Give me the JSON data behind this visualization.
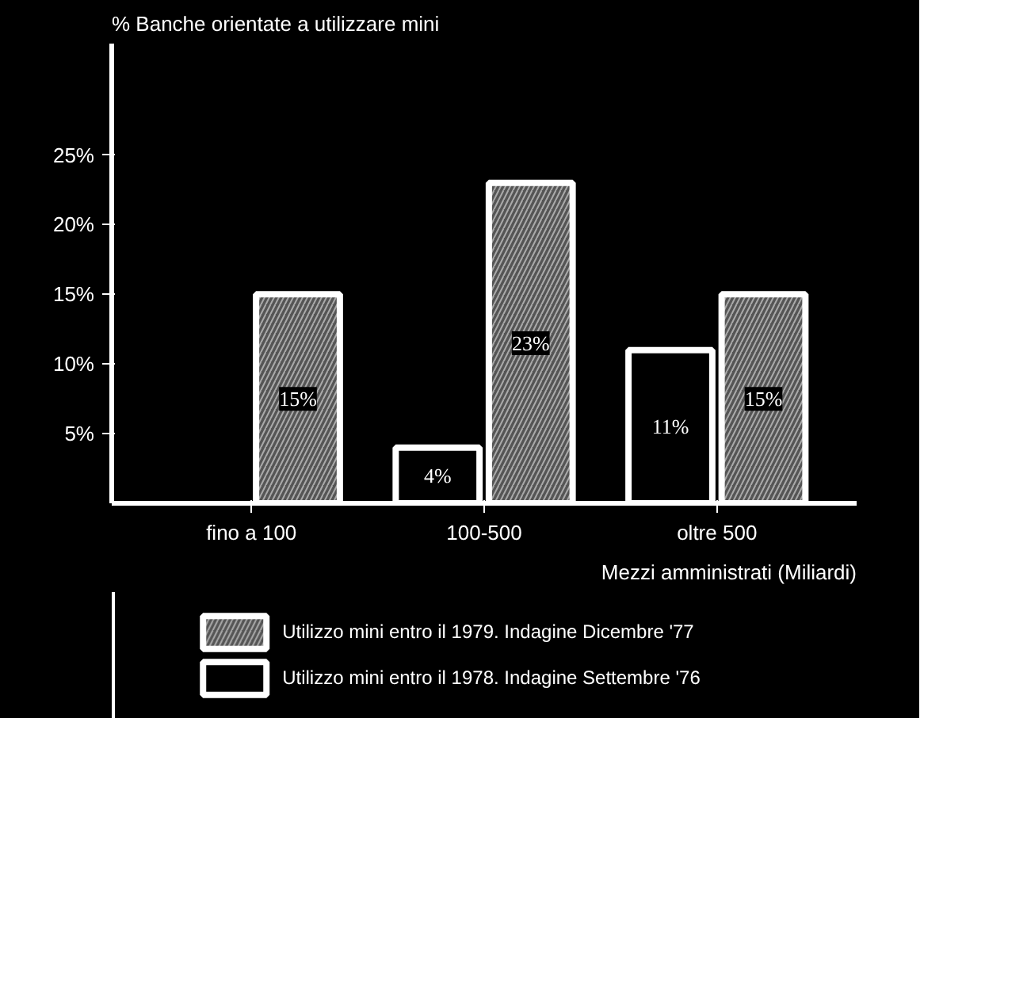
{
  "chart_data": {
    "type": "bar",
    "ylabel": "% Banche orientate a utilizzare mini",
    "xlabel": "Mezzi amministrati (Miliardi)",
    "categories": [
      "fino a 100",
      "100-500",
      "oltre 500"
    ],
    "series": [
      {
        "name": "Utilizzo mini entro il 1979. Indagine Dicembre '77",
        "color": "#555555",
        "values": [
          15,
          23,
          15
        ],
        "value_labels": [
          "15%",
          "23%",
          "15%"
        ]
      },
      {
        "name": "Utilizzo mini entro il 1978. Indagine Settembre '76",
        "color": "#000000",
        "values": [
          null,
          4,
          11
        ],
        "value_labels": [
          null,
          "4%",
          "11%"
        ]
      }
    ],
    "ylim": [
      0,
      33
    ],
    "yticks": [
      {
        "value": 5,
        "label": "5%"
      },
      {
        "value": 10,
        "label": "10%"
      },
      {
        "value": 15,
        "label": "15%"
      },
      {
        "value": 20,
        "label": "20%"
      },
      {
        "value": 25,
        "label": "25%"
      }
    ],
    "grid": false,
    "legend": "bottom"
  }
}
